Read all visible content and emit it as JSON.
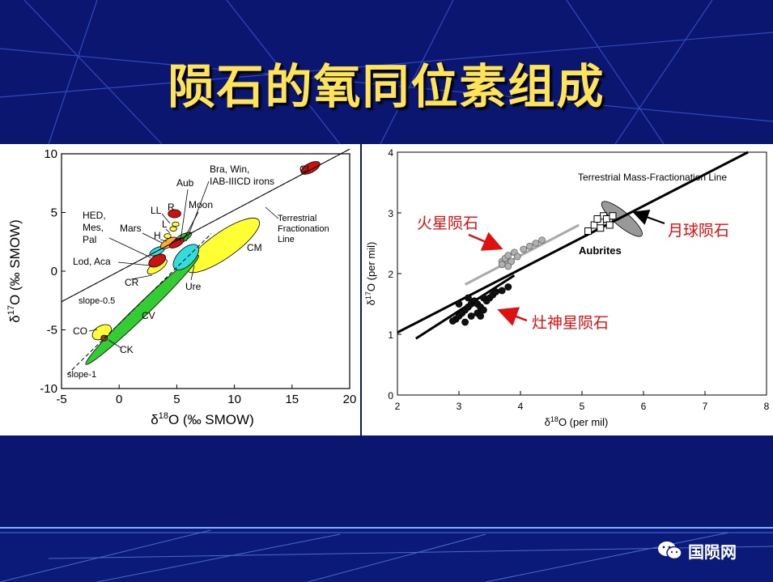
{
  "title": "陨石的氧同位素组成",
  "watermark": "国陨网",
  "colors": {
    "background": "#0a1670",
    "title": "#ffe45a"
  },
  "left_chart": {
    "xlabel_pre": "δ",
    "xlabel_sup": "18",
    "xlabel_post": "O (‰ SMOW)",
    "ylabel_pre": "δ",
    "ylabel_sup": "17",
    "ylabel_post": "O (‰ SMOW)",
    "line_labels": {
      "terrestrial": [
        "Terrestrial",
        "Fractionation",
        "Line"
      ],
      "slope_half": "slope-0.5",
      "slope_one": "slope-1"
    },
    "group_labels": [
      {
        "key": "CI",
        "text": "CI"
      },
      {
        "key": "bra",
        "lines": [
          "Bra, Win,",
          "IAB-IIICD irons"
        ]
      },
      {
        "key": "Aub",
        "text": "Aub"
      },
      {
        "key": "Moon",
        "text": "Moon"
      },
      {
        "key": "LL",
        "text": "LL"
      },
      {
        "key": "R",
        "text": "R"
      },
      {
        "key": "L",
        "text": "L"
      },
      {
        "key": "H",
        "text": "H"
      },
      {
        "key": "Mars",
        "text": "Mars"
      },
      {
        "key": "hed",
        "lines": [
          "HED,",
          "Mes,",
          "Pal"
        ]
      },
      {
        "key": "Lod",
        "text": "Lod, Aca"
      },
      {
        "key": "CR",
        "text": "CR"
      },
      {
        "key": "Ure",
        "text": "Ure"
      },
      {
        "key": "CM",
        "text": "CM"
      },
      {
        "key": "CV",
        "text": "CV"
      },
      {
        "key": "CO",
        "text": "CO"
      },
      {
        "key": "CK",
        "text": "CK"
      }
    ]
  },
  "right_chart": {
    "xlabel_pre": "δ",
    "xlabel_sup": "18",
    "xlabel_post": "O (per mil)",
    "ylabel_pre": "δ",
    "ylabel_sup": "17",
    "ylabel_post": "O (per mil)",
    "tfl_label": "Terrestrial Mass-Fractionation Line",
    "aubrites_label": "Aubrites",
    "mars_label": "火星陨石",
    "moon_label": "月球陨石",
    "vesta_label": "灶神星陨石"
  },
  "chart_data": [
    {
      "type": "scatter",
      "title": "",
      "xlabel": "δ18O (‰ SMOW)",
      "ylabel": "δ17O (‰ SMOW)",
      "xlim": [
        -5,
        20
      ],
      "ylim": [
        -10,
        10
      ],
      "xticks": [
        -5,
        0,
        5,
        10,
        15,
        20
      ],
      "yticks": [
        -10,
        -5,
        0,
        5,
        10
      ],
      "lines": [
        {
          "name": "Terrestrial Fractionation Line",
          "slope": 0.52,
          "intercept": 0
        },
        {
          "name": "slope-0.5",
          "x": [
            -5,
            20
          ],
          "y": [
            -2.6,
            10.4
          ]
        },
        {
          "name": "slope-1",
          "x": [
            -4.5,
            8
          ],
          "y": [
            -8.8,
            3.2
          ]
        }
      ],
      "fields": [
        {
          "name": "CI",
          "cx": 16.6,
          "cy": 8.8,
          "rx": 0.9,
          "ry": 0.4,
          "angle": 28,
          "color": "#cc1111"
        },
        {
          "name": "CM",
          "cx": 9.0,
          "cy": 2.2,
          "rx": 3.8,
          "ry": 1.1,
          "angle": 35,
          "color": "#ffff33"
        },
        {
          "name": "CV",
          "cx": 2.0,
          "cy": -3.3,
          "rx": 6.8,
          "ry": 0.55,
          "angle": 44,
          "color": "#33cc33"
        },
        {
          "name": "CO",
          "cx": -1.5,
          "cy": -5.2,
          "rx": 0.9,
          "ry": 0.55,
          "angle": 30,
          "color": "#ffff33"
        },
        {
          "name": "CK",
          "cx": -1.3,
          "cy": -5.7,
          "rx": 0.28,
          "ry": 0.25,
          "angle": 0,
          "color": "#884422"
        },
        {
          "name": "CR",
          "cx": 3.3,
          "cy": 0.4,
          "rx": 1.0,
          "ry": 0.4,
          "angle": 35,
          "color": "#ffff33"
        },
        {
          "name": "Lod, Aca",
          "cx": 3.3,
          "cy": 0.9,
          "rx": 0.8,
          "ry": 0.45,
          "angle": 30,
          "color": "#cc1111"
        },
        {
          "name": "Ure",
          "cx": 5.8,
          "cy": 1.2,
          "rx": 1.4,
          "ry": 0.7,
          "angle": 45,
          "color": "#33dddd"
        },
        {
          "name": "HED, Mes, Pal",
          "cx": 3.3,
          "cy": 1.7,
          "rx": 0.7,
          "ry": 0.3,
          "angle": 25,
          "color": "#33dddd"
        },
        {
          "name": "Mars",
          "cx": 4.3,
          "cy": 2.4,
          "rx": 0.8,
          "ry": 0.35,
          "angle": 30,
          "color": "#ffaa33"
        },
        {
          "name": "Moon",
          "cx": 5.5,
          "cy": 2.8,
          "rx": 0.9,
          "ry": 0.3,
          "angle": 30,
          "color": "#33cc33"
        },
        {
          "name": "H",
          "cx": 4.2,
          "cy": 3.0,
          "rx": 0.3,
          "ry": 0.2,
          "angle": 0,
          "color": "#ffff33"
        },
        {
          "name": "L",
          "cx": 4.7,
          "cy": 3.6,
          "rx": 0.3,
          "ry": 0.2,
          "angle": 0,
          "color": "#ffff33"
        },
        {
          "name": "LL",
          "cx": 4.9,
          "cy": 4.0,
          "rx": 0.3,
          "ry": 0.2,
          "angle": 0,
          "color": "#ffff33"
        },
        {
          "name": "R",
          "cx": 4.8,
          "cy": 4.9,
          "rx": 0.55,
          "ry": 0.35,
          "angle": 0,
          "color": "#cc1111"
        },
        {
          "name": "Aub",
          "cx": 5.4,
          "cy": 2.9,
          "rx": 0.5,
          "ry": 0.2,
          "angle": 30,
          "color": "#33cc33"
        },
        {
          "name": "Bra, Win, IAB-IIICD irons",
          "cx": 5.0,
          "cy": 2.4,
          "rx": 0.7,
          "ry": 0.3,
          "angle": 30,
          "color": "#cc1111"
        }
      ]
    },
    {
      "type": "scatter",
      "title": "",
      "xlabel": "δ18O (per mil)",
      "ylabel": "δ17O (per mil)",
      "xlim": [
        2,
        8
      ],
      "ylim": [
        0,
        4
      ],
      "xticks": [
        2,
        3,
        4,
        5,
        6,
        7,
        8
      ],
      "yticks": [
        0,
        1,
        2,
        3,
        4
      ],
      "lines": [
        {
          "name": "Terrestrial Mass-Fractionation Line",
          "x": [
            2,
            7.7
          ],
          "y": [
            1.03,
            4.0
          ]
        },
        {
          "name": "Mars trend",
          "x": [
            3.1,
            4.95
          ],
          "y": [
            1.82,
            2.8
          ],
          "color": "#aaaaaa"
        },
        {
          "name": "Vesta trend",
          "x": [
            2.3,
            3.9
          ],
          "y": [
            0.93,
            1.97
          ]
        }
      ],
      "series": [
        {
          "name": "火星陨石",
          "marker": "circle-gray",
          "points": [
            [
              3.7,
              2.2
            ],
            [
              3.75,
              2.25
            ],
            [
              3.8,
              2.3
            ],
            [
              3.85,
              2.2
            ],
            [
              3.9,
              2.35
            ],
            [
              3.7,
              2.15
            ],
            [
              3.8,
              2.12
            ],
            [
              4.05,
              2.4
            ],
            [
              4.15,
              2.45
            ],
            [
              4.25,
              2.5
            ],
            [
              4.35,
              2.55
            ],
            [
              3.95,
              2.28
            ]
          ]
        },
        {
          "name": "灶神星陨石",
          "marker": "circle-black",
          "points": [
            [
              2.95,
              1.25
            ],
            [
              3.0,
              1.3
            ],
            [
              3.05,
              1.35
            ],
            [
              3.1,
              1.4
            ],
            [
              3.15,
              1.45
            ],
            [
              3.2,
              1.5
            ],
            [
              3.25,
              1.55
            ],
            [
              3.3,
              1.5
            ],
            [
              3.35,
              1.45
            ],
            [
              3.4,
              1.6
            ],
            [
              3.45,
              1.55
            ],
            [
              3.5,
              1.6
            ],
            [
              3.55,
              1.65
            ],
            [
              3.6,
              1.7
            ],
            [
              3.7,
              1.72
            ],
            [
              3.8,
              1.78
            ],
            [
              3.1,
              1.2
            ],
            [
              3.2,
              1.3
            ],
            [
              3.3,
              1.35
            ],
            [
              3.4,
              1.4
            ],
            [
              2.9,
              1.22
            ],
            [
              3.0,
              1.5
            ],
            [
              3.15,
              1.6
            ],
            [
              3.35,
              1.3
            ]
          ]
        },
        {
          "name": "Aubrites",
          "marker": "square-open",
          "points": [
            [
              5.1,
              2.7
            ],
            [
              5.2,
              2.8
            ],
            [
              5.3,
              2.85
            ],
            [
              5.35,
              2.95
            ],
            [
              5.4,
              2.9
            ],
            [
              5.45,
              2.8
            ],
            [
              5.3,
              2.75
            ],
            [
              5.5,
              2.95
            ],
            [
              5.25,
              2.9
            ]
          ]
        }
      ],
      "fields": [
        {
          "name": "月球陨石",
          "cx": 5.65,
          "cy": 2.9,
          "rx": 0.42,
          "ry": 0.12,
          "angle": -40,
          "color": "#999999"
        }
      ]
    }
  ]
}
